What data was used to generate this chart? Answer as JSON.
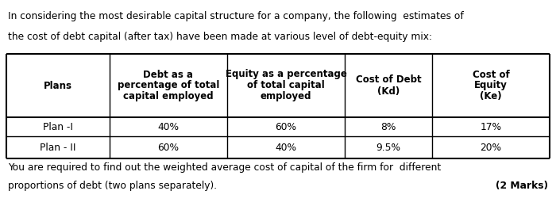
{
  "intro_line1": "In considering the most desirable capital structure for a company, the following  estimates of",
  "intro_line2": "the cost of debt capital (after tax) have been made at various level of debt-equity mix:",
  "col_headers": [
    [
      "Plans"
    ],
    [
      "Debt as a",
      "percentage of total",
      "capital employed"
    ],
    [
      "Equity as a percentage",
      "of total capital",
      "employed"
    ],
    [
      "Cost of Debt",
      "(Kd)"
    ],
    [
      "Cost of",
      "Equity",
      "(Ke)"
    ]
  ],
  "rows": [
    [
      "Plan -I",
      "40%",
      "60%",
      "8%",
      "17%"
    ],
    [
      "Plan - II",
      "60%",
      "40%",
      "9.5%",
      "20%"
    ]
  ],
  "footer_line1": "You are required to find out the weighted average cost of capital of the firm for  different",
  "footer_line2": "proportions of debt (two plans separately).",
  "footer_marks": "(2 Marks)",
  "bg_color": "#ffffff",
  "text_color": "#000000",
  "table_line_color": "#000000",
  "figsize": [
    7.0,
    2.6
  ],
  "dpi": 100
}
